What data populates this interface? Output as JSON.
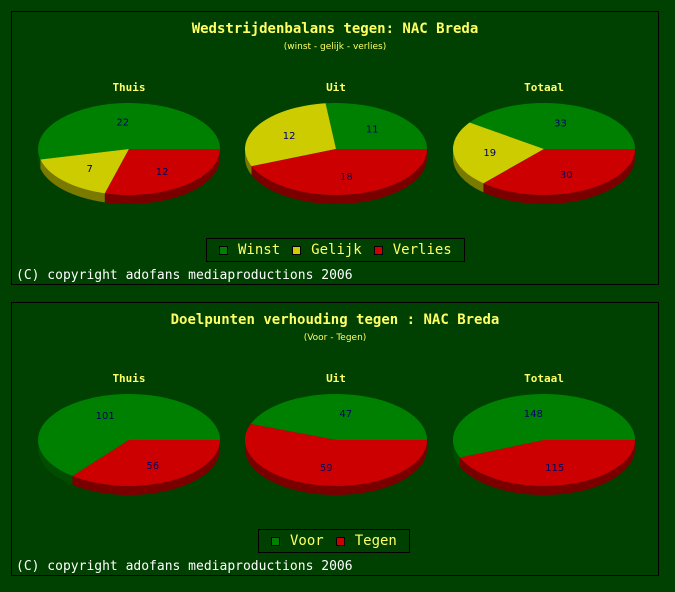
{
  "panels": [
    {
      "title": "Wedstrijdenbalans tegen: NAC Breda",
      "subtitle": "(winst - gelijk - verlies)",
      "legend": [
        {
          "label": "Winst",
          "color": "#008000"
        },
        {
          "label": "Gelijk",
          "color": "#cccc00"
        },
        {
          "label": "Verlies",
          "color": "#cc0000"
        }
      ],
      "copyright": "(C) copyright adofans mediaproductions 2006"
    },
    {
      "title": "Doelpunten verhouding tegen : NAC Breda",
      "subtitle": "(Voor - Tegen)",
      "legend": [
        {
          "label": "Voor",
          "color": "#008000"
        },
        {
          "label": "Tegen",
          "color": "#cc0000"
        }
      ],
      "copyright": "(C) copyright adofans mediaproductions 2006"
    }
  ],
  "chart_data": [
    {
      "type": "pie",
      "title": "Thuis",
      "categories": [
        "Winst",
        "Gelijk",
        "Verlies"
      ],
      "values": [
        22,
        7,
        12
      ],
      "colors": [
        "#008000",
        "#cccc00",
        "#cc0000"
      ]
    },
    {
      "type": "pie",
      "title": "Uit",
      "categories": [
        "Winst",
        "Gelijk",
        "Verlies"
      ],
      "values": [
        11,
        12,
        18
      ],
      "colors": [
        "#008000",
        "#cccc00",
        "#cc0000"
      ]
    },
    {
      "type": "pie",
      "title": "Totaal",
      "categories": [
        "Winst",
        "Gelijk",
        "Verlies"
      ],
      "values": [
        33,
        19,
        30
      ],
      "colors": [
        "#008000",
        "#cccc00",
        "#cc0000"
      ]
    },
    {
      "type": "pie",
      "title": "Thuis",
      "categories": [
        "Voor",
        "Tegen"
      ],
      "values": [
        101,
        56
      ],
      "colors": [
        "#008000",
        "#cc0000"
      ]
    },
    {
      "type": "pie",
      "title": "Uit",
      "categories": [
        "Voor",
        "Tegen"
      ],
      "values": [
        47,
        59
      ],
      "colors": [
        "#008000",
        "#cc0000"
      ]
    },
    {
      "type": "pie",
      "title": "Totaal",
      "categories": [
        "Voor",
        "Tegen"
      ],
      "values": [
        148,
        115
      ],
      "colors": [
        "#008000",
        "#cc0000"
      ]
    }
  ]
}
